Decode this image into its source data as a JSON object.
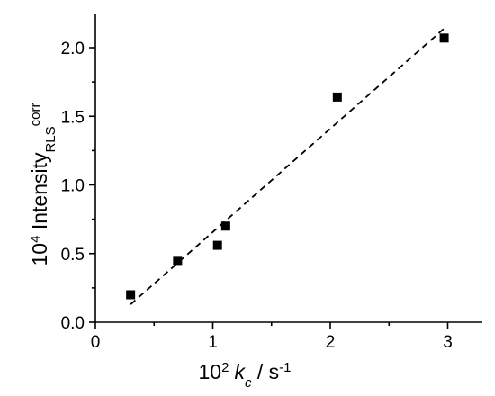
{
  "chart_data": {
    "type": "scatter",
    "title": "",
    "xlabel": {
      "prefix": "10",
      "prefix_sup": "2",
      "symbol": "k",
      "symbol_sub": "c",
      "unit": " / s",
      "unit_sup": "-1"
    },
    "ylabel": {
      "prefix": "10",
      "prefix_sup": "4",
      "main": " Intensity",
      "sub": "RLS",
      "sup": "corr"
    },
    "xlim": [
      0,
      3.3
    ],
    "ylim": [
      0,
      2.2
    ],
    "xticks": [
      0,
      1,
      2,
      3
    ],
    "xtick_labels": [
      "0",
      "1",
      "2",
      "3"
    ],
    "yticks": [
      0,
      0.5,
      1.0,
      1.5,
      2.0
    ],
    "ytick_labels": [
      "0.0",
      "0.5",
      "1.0",
      "1.5",
      "2.0"
    ],
    "series": [
      {
        "marker": "square",
        "color": "#000000",
        "x": [
          0.3,
          0.7,
          1.04,
          1.11,
          2.06,
          2.97
        ],
        "y": [
          0.2,
          0.45,
          0.56,
          0.7,
          1.64,
          2.07
        ]
      }
    ],
    "fit": {
      "style": "dashed",
      "color": "#000000",
      "x": [
        0.3,
        2.97
      ],
      "y": [
        0.13,
        2.14
      ]
    },
    "grid": false,
    "legend": "none"
  }
}
